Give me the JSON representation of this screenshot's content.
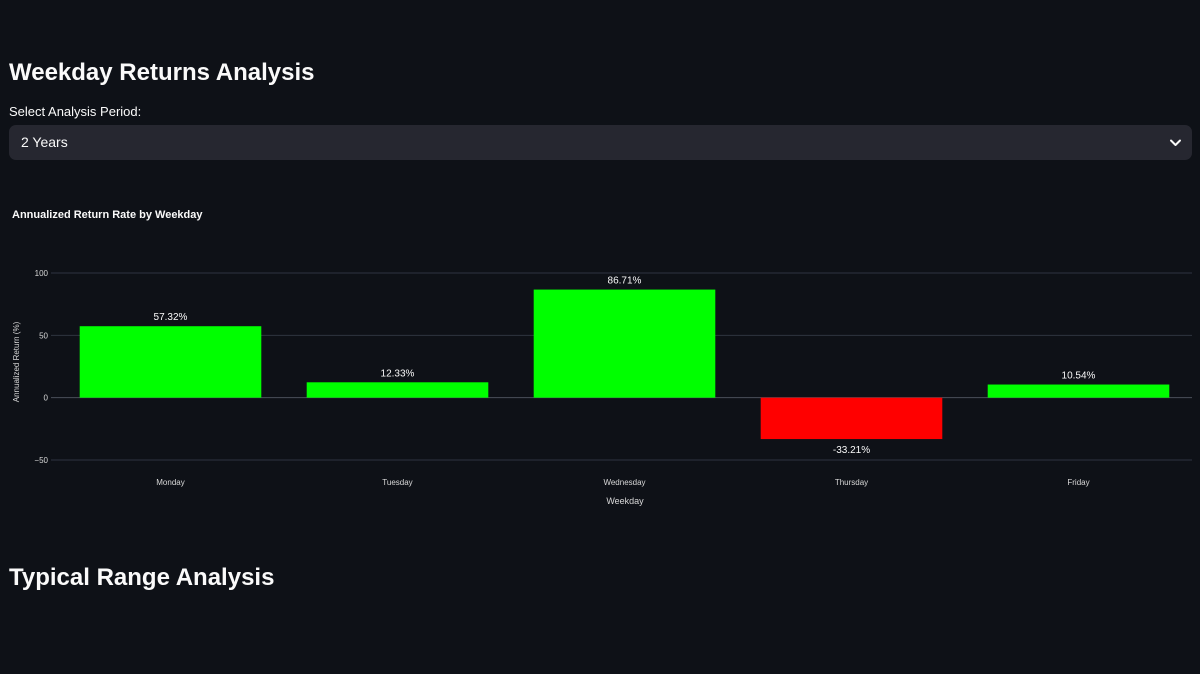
{
  "header": {
    "title": "Weekday Returns Analysis"
  },
  "period_select": {
    "label": "Select Analysis Period:",
    "value": "2 Years"
  },
  "section2": {
    "title": "Typical Range Analysis"
  },
  "colors": {
    "background": "#0e1117",
    "positive": "#00ff00",
    "negative": "#ff0000",
    "gridline": "#2f3440"
  },
  "chart_data": {
    "type": "bar",
    "title": "Annualized Return Rate by Weekday",
    "xlabel": "Weekday",
    "ylabel": "Annualized Return (%)",
    "categories": [
      "Monday",
      "Tuesday",
      "Wednesday",
      "Thursday",
      "Friday"
    ],
    "values": [
      57.32,
      12.33,
      86.71,
      -33.21,
      10.54
    ],
    "data_labels": [
      "57.32%",
      "12.33%",
      "86.71%",
      "-33.21%",
      "10.54%"
    ],
    "yticks": [
      100,
      50,
      0,
      -50
    ],
    "ytick_labels": [
      "100",
      "50",
      "0",
      "−50"
    ],
    "ylim": [
      -50,
      100
    ],
    "grid": true,
    "legend": false
  }
}
